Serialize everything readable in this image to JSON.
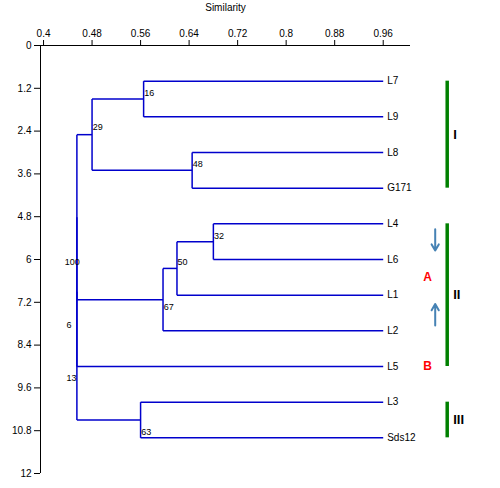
{
  "chart_data": {
    "type": "dendrogram",
    "xlabel": "Similarity",
    "xlim": [
      0.395,
      1.005
    ],
    "xticks": [
      0.4,
      0.48,
      0.56,
      0.64,
      0.72,
      0.8,
      0.88,
      0.96
    ],
    "ylim": [
      12,
      0
    ],
    "yticks": [
      0,
      1.2,
      2.4,
      3.6,
      4.8,
      6,
      7.2,
      8.4,
      9.6,
      10.8,
      12
    ],
    "color": "#0000cc",
    "leaf_x": 0.96,
    "tree": {
      "x": 0.455,
      "children": [
        {
          "x": 0.455,
          "children": [
            {
              "x": 0.455,
              "children": [
                {
                  "x": 0.48,
                  "children": [
                    {
                      "x": 0.565,
                      "children": [
                        {
                          "name": "L7",
                          "y": 1
                        },
                        {
                          "name": "L9",
                          "y": 2
                        }
                      ]
                    },
                    {
                      "x": 0.645,
                      "children": [
                        {
                          "name": "L8",
                          "y": 3
                        },
                        {
                          "name": "G171",
                          "y": 4
                        }
                      ]
                    }
                  ]
                },
                {
                  "x": 0.597,
                  "children": [
                    {
                      "x": 0.62,
                      "children": [
                        {
                          "x": 0.68,
                          "children": [
                            {
                              "name": "L4",
                              "y": 5
                            },
                            {
                              "name": "L6",
                              "y": 6
                            }
                          ]
                        },
                        {
                          "name": "L1",
                          "y": 7
                        }
                      ]
                    },
                    {
                      "name": "L2",
                      "y": 8
                    }
                  ]
                }
              ]
            },
            {
              "name": "L5",
              "y": 9
            }
          ]
        },
        {
          "x": 0.56,
          "children": [
            {
              "name": "L3",
              "y": 10
            },
            {
              "name": "Sds12",
              "y": 11
            }
          ]
        }
      ]
    },
    "bootstrap": [
      {
        "text": "16",
        "x": 0.566,
        "y": 1.42
      },
      {
        "text": "29",
        "x": 0.481,
        "y": 2.38
      },
      {
        "text": "48",
        "x": 0.646,
        "y": 3.42
      },
      {
        "text": "32",
        "x": 0.681,
        "y": 5.42
      },
      {
        "text": "50",
        "x": 0.621,
        "y": 6.15
      },
      {
        "text": "67",
        "x": 0.598,
        "y": 7.42
      },
      {
        "text": "100",
        "x": 0.435,
        "y": 6.15
      },
      {
        "text": "6",
        "x": 0.438,
        "y": 7.92
      },
      {
        "text": "13",
        "x": 0.438,
        "y": 9.42
      },
      {
        "text": "63",
        "x": 0.561,
        "y": 10.92
      }
    ],
    "clusters": [
      {
        "label": "I",
        "y_start": 1,
        "y_end": 4,
        "color": "green"
      },
      {
        "label": "II",
        "y_start": 5,
        "y_end": 9,
        "color": "green"
      },
      {
        "label": "III",
        "y_start": 10,
        "y_end": 11,
        "color": "green"
      }
    ],
    "arrows": [
      {
        "y_tail": 5.15,
        "y_head": 5.75,
        "color": "steelblue"
      },
      {
        "y_tail": 7.85,
        "y_head": 7.25,
        "color": "steelblue"
      }
    ],
    "annotations": [
      {
        "text": "A",
        "y": 6.5,
        "color": "#ff0000"
      },
      {
        "text": "B",
        "y": 9,
        "color": "#ff0000"
      }
    ]
  }
}
